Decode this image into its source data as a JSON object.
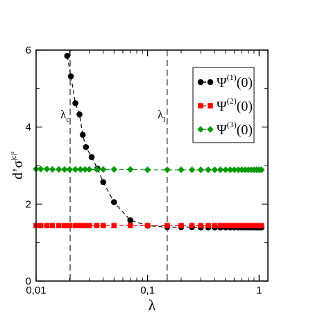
{
  "chart_data": {
    "type": "scatter",
    "title": "",
    "xlabel": "λ",
    "ylabel": "d’σ|c|²",
    "xscale": "log",
    "xlim": [
      0.01,
      1.2
    ],
    "ylim": [
      0,
      6
    ],
    "xticks": [
      {
        "value": 0.01,
        "label": "0,01"
      },
      {
        "value": 0.1,
        "label": "0,1"
      },
      {
        "value": 1,
        "label": "1"
      }
    ],
    "yticks": [
      {
        "value": 0,
        "label": "0"
      },
      {
        "value": 2,
        "label": "2"
      },
      {
        "value": 4,
        "label": "4"
      },
      {
        "value": 6,
        "label": "6"
      }
    ],
    "grid": false,
    "legend_position": "top-right",
    "vlines": [
      {
        "x": 0.0202,
        "label": "λc"
      },
      {
        "x": 0.15,
        "label": "λl"
      }
    ],
    "series": [
      {
        "name": "Ψ(1)(0)",
        "color": "#000000",
        "marker": "circle",
        "x": [
          0.019,
          0.0205,
          0.0225,
          0.0245,
          0.0262,
          0.028,
          0.0315,
          0.0355,
          0.04,
          0.05,
          0.07,
          0.1,
          0.15,
          0.2,
          0.25,
          0.3,
          0.35,
          0.4,
          0.45,
          0.5,
          0.55,
          0.6,
          0.65,
          0.7,
          0.75,
          0.8,
          0.85,
          0.9,
          0.95,
          1.0,
          1.05
        ],
        "y": [
          5.85,
          5.32,
          4.62,
          4.33,
          3.8,
          3.48,
          3.22,
          2.92,
          2.57,
          2.05,
          1.58,
          1.44,
          1.4,
          1.4,
          1.4,
          1.39,
          1.39,
          1.39,
          1.39,
          1.39,
          1.39,
          1.39,
          1.39,
          1.39,
          1.39,
          1.39,
          1.39,
          1.39,
          1.39,
          1.39,
          1.39
        ]
      },
      {
        "name": "Ψ(2)(0)",
        "color": "#ff0000",
        "marker": "square",
        "x": [
          0.01,
          0.011,
          0.0125,
          0.014,
          0.016,
          0.018,
          0.02,
          0.0225,
          0.025,
          0.0275,
          0.03,
          0.035,
          0.04,
          0.05,
          0.07,
          0.1,
          0.15,
          0.2,
          0.25,
          0.3,
          0.35,
          0.4,
          0.45,
          0.5,
          0.55,
          0.6,
          0.65,
          0.7,
          0.75,
          0.8,
          0.85,
          0.9,
          0.95,
          1.0,
          1.05
        ],
        "y": [
          1.44,
          1.44,
          1.44,
          1.44,
          1.44,
          1.44,
          1.44,
          1.44,
          1.44,
          1.44,
          1.44,
          1.44,
          1.44,
          1.44,
          1.44,
          1.44,
          1.44,
          1.44,
          1.44,
          1.44,
          1.44,
          1.44,
          1.44,
          1.44,
          1.44,
          1.44,
          1.44,
          1.44,
          1.44,
          1.44,
          1.44,
          1.44,
          1.44,
          1.44,
          1.44
        ]
      },
      {
        "name": "Ψ(3)(0)",
        "color": "#009900",
        "marker": "diamond",
        "x": [
          0.01,
          0.011,
          0.0125,
          0.014,
          0.016,
          0.018,
          0.02,
          0.0225,
          0.025,
          0.0275,
          0.03,
          0.035,
          0.04,
          0.05,
          0.07,
          0.1,
          0.15,
          0.2,
          0.25,
          0.3,
          0.35,
          0.4,
          0.45,
          0.5,
          0.55,
          0.6,
          0.65,
          0.7,
          0.75,
          0.8,
          0.85,
          0.9,
          0.95,
          1.0,
          1.05
        ],
        "y": [
          2.91,
          2.91,
          2.91,
          2.9,
          2.9,
          2.9,
          2.9,
          2.9,
          2.9,
          2.9,
          2.9,
          2.9,
          2.9,
          2.9,
          2.9,
          2.89,
          2.89,
          2.89,
          2.89,
          2.89,
          2.89,
          2.89,
          2.89,
          2.89,
          2.89,
          2.89,
          2.89,
          2.89,
          2.89,
          2.89,
          2.89,
          2.89,
          2.89,
          2.89,
          2.89
        ]
      }
    ],
    "legend": [
      {
        "base": "Ψ",
        "sup": "(1)",
        "arg": "(0)"
      },
      {
        "base": "Ψ",
        "sup": "(2)",
        "arg": "(0)"
      },
      {
        "base": "Ψ",
        "sup": "(3)",
        "arg": "(0)"
      }
    ]
  }
}
